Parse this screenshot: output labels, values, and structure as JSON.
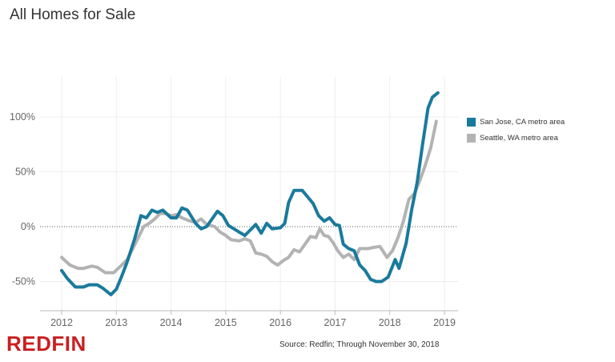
{
  "title": "All Homes for Sale",
  "source_note": "Source: Redfin; Through November 30, 2018",
  "logo_text": "REDFIN",
  "chart_data": {
    "type": "line",
    "title": "All Homes for Sale",
    "xlabel": "",
    "ylabel": "",
    "xlim": [
      2012,
      2019
    ],
    "ylim": [
      -70,
      130
    ],
    "x_ticks": [
      2012,
      2013,
      2014,
      2015,
      2016,
      2017,
      2018,
      2019
    ],
    "y_ticks": [
      {
        "value": 100,
        "label": "100%"
      },
      {
        "value": 50,
        "label": "50%"
      },
      {
        "value": 0,
        "label": "0%"
      },
      {
        "value": -50,
        "label": "-50%"
      }
    ],
    "zero_line": "dotted",
    "legend_position": "right",
    "series": [
      {
        "name": "San Jose, CA metro area",
        "color": "#1a7a9c",
        "points": [
          [
            2012.0,
            -40
          ],
          [
            2012.1,
            -47
          ],
          [
            2012.25,
            -55
          ],
          [
            2012.4,
            -55
          ],
          [
            2012.5,
            -53
          ],
          [
            2012.65,
            -53
          ],
          [
            2012.75,
            -56
          ],
          [
            2012.9,
            -62
          ],
          [
            2013.0,
            -57
          ],
          [
            2013.1,
            -45
          ],
          [
            2013.2,
            -32
          ],
          [
            2013.33,
            -12
          ],
          [
            2013.45,
            10
          ],
          [
            2013.55,
            8
          ],
          [
            2013.65,
            15
          ],
          [
            2013.75,
            13
          ],
          [
            2013.85,
            15
          ],
          [
            2014.0,
            8
          ],
          [
            2014.1,
            8
          ],
          [
            2014.2,
            17
          ],
          [
            2014.3,
            15
          ],
          [
            2014.45,
            3
          ],
          [
            2014.55,
            -2
          ],
          [
            2014.65,
            0
          ],
          [
            2014.75,
            7
          ],
          [
            2014.85,
            14
          ],
          [
            2014.95,
            10
          ],
          [
            2015.05,
            1
          ],
          [
            2015.15,
            -2
          ],
          [
            2015.25,
            -5
          ],
          [
            2015.35,
            -8
          ],
          [
            2015.45,
            -3
          ],
          [
            2015.55,
            2
          ],
          [
            2015.65,
            -6
          ],
          [
            2015.75,
            3
          ],
          [
            2015.85,
            -2
          ],
          [
            2016.0,
            -1
          ],
          [
            2016.08,
            3
          ],
          [
            2016.15,
            22
          ],
          [
            2016.25,
            33
          ],
          [
            2016.4,
            33
          ],
          [
            2016.5,
            27
          ],
          [
            2016.6,
            21
          ],
          [
            2016.7,
            10
          ],
          [
            2016.8,
            5
          ],
          [
            2016.9,
            8
          ],
          [
            2017.0,
            2
          ],
          [
            2017.08,
            1
          ],
          [
            2017.15,
            -16
          ],
          [
            2017.25,
            -20
          ],
          [
            2017.35,
            -22
          ],
          [
            2017.45,
            -35
          ],
          [
            2017.55,
            -40
          ],
          [
            2017.65,
            -48
          ],
          [
            2017.75,
            -50
          ],
          [
            2017.85,
            -50
          ],
          [
            2017.97,
            -46
          ],
          [
            2018.1,
            -30
          ],
          [
            2018.17,
            -38
          ],
          [
            2018.3,
            -15
          ],
          [
            2018.4,
            15
          ],
          [
            2018.5,
            40
          ],
          [
            2018.6,
            75
          ],
          [
            2018.7,
            108
          ],
          [
            2018.78,
            118
          ],
          [
            2018.88,
            122
          ]
        ]
      },
      {
        "name": "Seattle, WA metro area",
        "color": "#b3b3b3",
        "points": [
          [
            2012.0,
            -28
          ],
          [
            2012.15,
            -35
          ],
          [
            2012.3,
            -38
          ],
          [
            2012.4,
            -38
          ],
          [
            2012.55,
            -36
          ],
          [
            2012.65,
            -37
          ],
          [
            2012.8,
            -42
          ],
          [
            2012.95,
            -42
          ],
          [
            2013.1,
            -35
          ],
          [
            2013.2,
            -30
          ],
          [
            2013.35,
            -15
          ],
          [
            2013.5,
            0
          ],
          [
            2013.6,
            3
          ],
          [
            2013.7,
            7
          ],
          [
            2013.8,
            12
          ],
          [
            2013.9,
            12
          ],
          [
            2014.0,
            10
          ],
          [
            2014.1,
            11
          ],
          [
            2014.2,
            8
          ],
          [
            2014.35,
            5
          ],
          [
            2014.45,
            4
          ],
          [
            2014.55,
            7
          ],
          [
            2014.65,
            2
          ],
          [
            2014.8,
            0
          ],
          [
            2014.9,
            -5
          ],
          [
            2015.0,
            -8
          ],
          [
            2015.1,
            -12
          ],
          [
            2015.25,
            -13
          ],
          [
            2015.35,
            -11
          ],
          [
            2015.45,
            -13
          ],
          [
            2015.55,
            -24
          ],
          [
            2015.65,
            -25
          ],
          [
            2015.75,
            -27
          ],
          [
            2015.85,
            -32
          ],
          [
            2015.95,
            -35
          ],
          [
            2016.05,
            -31
          ],
          [
            2016.15,
            -28
          ],
          [
            2016.25,
            -21
          ],
          [
            2016.35,
            -23
          ],
          [
            2016.45,
            -16
          ],
          [
            2016.55,
            -9
          ],
          [
            2016.65,
            -10
          ],
          [
            2016.72,
            -2
          ],
          [
            2016.8,
            -8
          ],
          [
            2016.88,
            -9
          ],
          [
            2016.97,
            -15
          ],
          [
            2017.05,
            -22
          ],
          [
            2017.15,
            -28
          ],
          [
            2017.25,
            -25
          ],
          [
            2017.35,
            -30
          ],
          [
            2017.45,
            -20
          ],
          [
            2017.6,
            -20
          ],
          [
            2017.7,
            -19
          ],
          [
            2017.82,
            -18
          ],
          [
            2017.95,
            -28
          ],
          [
            2018.05,
            -22
          ],
          [
            2018.15,
            -10
          ],
          [
            2018.25,
            5
          ],
          [
            2018.35,
            25
          ],
          [
            2018.45,
            30
          ],
          [
            2018.55,
            42
          ],
          [
            2018.65,
            56
          ],
          [
            2018.75,
            72
          ],
          [
            2018.85,
            96
          ]
        ]
      }
    ]
  }
}
